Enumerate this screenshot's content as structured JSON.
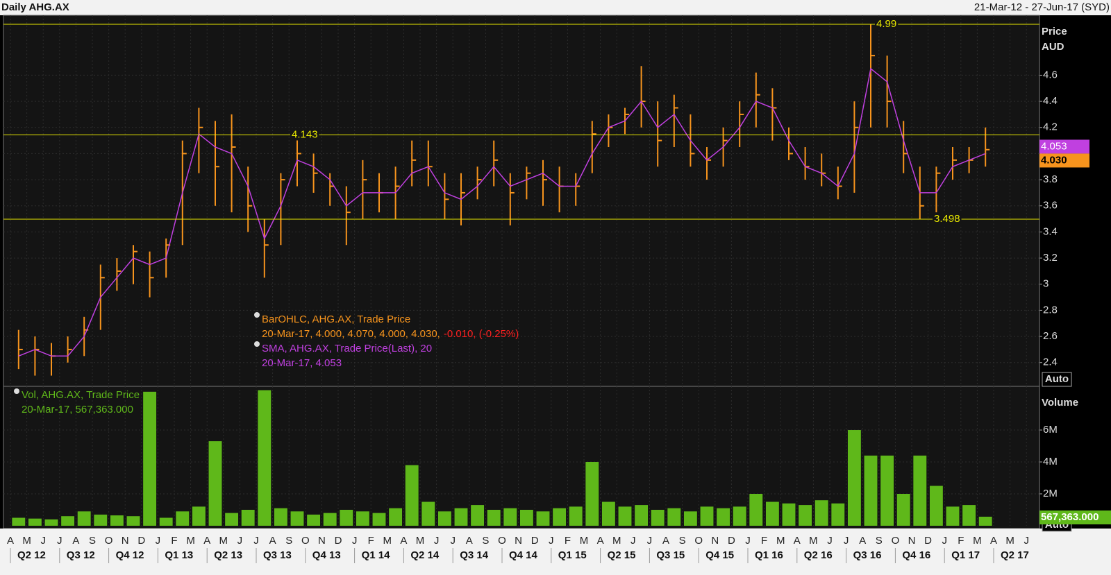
{
  "header": {
    "title": "Daily AHG.AX",
    "range": "21-Mar-12 - 27-Jun-17 (SYD)"
  },
  "chart_data": [
    {
      "type": "ohlc",
      "y_label": "Price",
      "y_unit": "AUD",
      "button": "Auto",
      "ylim": [
        2.218,
        5.059
      ],
      "yticks": [
        2.4,
        2.6,
        2.8,
        3,
        3.2,
        3.4,
        3.6,
        3.8,
        4,
        4.2,
        4.4,
        4.6
      ],
      "grid": true,
      "reference_lines": [
        {
          "value": 4.99,
          "color": "#e8e800"
        },
        {
          "value": 4.143,
          "color": "#e8e800"
        },
        {
          "value": 3.498,
          "color": "#e8e800"
        }
      ],
      "series": [
        {
          "name": "BarOHLC, AHG.AX, Trade Price",
          "color": "#f7941d",
          "detail": "20-Mar-17, 4.000, 4.070, 4.000, 4.030,",
          "change": "-0.010, (-0.25%)",
          "change_color": "#ff2020",
          "last_value": {
            "value": 4.03,
            "label": "4.030"
          },
          "high": [
            2.65,
            2.6,
            2.55,
            2.6,
            2.75,
            3.15,
            3.2,
            3.3,
            3.25,
            3.35,
            4.1,
            4.35,
            4.25,
            4.3,
            3.9,
            3.5,
            3.85,
            4.14,
            4.0,
            3.85,
            3.75,
            3.95,
            3.85,
            3.9,
            4.1,
            4.1,
            3.85,
            3.85,
            3.9,
            4.1,
            3.85,
            3.9,
            3.95,
            3.9,
            3.85,
            4.25,
            4.3,
            4.35,
            4.67,
            4.4,
            4.45,
            4.3,
            4.05,
            4.2,
            4.4,
            4.62,
            4.5,
            4.2,
            4.05,
            4.0,
            3.9,
            4.4,
            4.99,
            4.75,
            4.25,
            3.9,
            3.9,
            4.05,
            4.05,
            4.2,
            null,
            null,
            null
          ],
          "low": [
            2.35,
            2.3,
            2.3,
            2.4,
            2.45,
            2.65,
            2.95,
            3.0,
            2.9,
            3.05,
            3.3,
            3.85,
            3.6,
            3.55,
            3.4,
            3.05,
            3.3,
            3.75,
            3.7,
            3.6,
            3.3,
            3.5,
            3.55,
            3.5,
            3.75,
            3.75,
            3.5,
            3.45,
            3.65,
            3.75,
            3.45,
            3.65,
            3.6,
            3.55,
            3.6,
            3.85,
            4.05,
            4.15,
            4.2,
            3.9,
            4.05,
            3.9,
            3.8,
            3.9,
            4.05,
            4.2,
            4.1,
            3.95,
            3.8,
            3.75,
            3.65,
            3.7,
            4.2,
            4.2,
            3.85,
            3.5,
            3.55,
            3.8,
            3.85,
            3.9,
            null,
            null,
            null
          ],
          "close": [
            2.5,
            2.5,
            2.45,
            2.5,
            2.65,
            3.05,
            3.1,
            3.25,
            3.05,
            3.3,
            4.0,
            4.2,
            3.9,
            4.05,
            3.6,
            3.3,
            3.8,
            4.0,
            3.85,
            3.75,
            3.55,
            3.8,
            3.7,
            3.75,
            3.95,
            3.9,
            3.65,
            3.7,
            3.8,
            3.95,
            3.7,
            3.85,
            3.8,
            3.75,
            3.75,
            4.15,
            4.2,
            4.3,
            4.4,
            4.1,
            4.35,
            4.0,
            3.95,
            4.1,
            4.3,
            4.45,
            4.35,
            4.0,
            3.9,
            3.85,
            3.75,
            4.2,
            4.75,
            4.4,
            4.0,
            3.6,
            3.85,
            3.95,
            3.95,
            4.03,
            null,
            null,
            null
          ]
        },
        {
          "name": "SMA, AHG.AX, Trade Price(Last),  20",
          "color": "#c040e0",
          "detail": "20-Mar-17, 4.053",
          "last_value": 4.053,
          "values": [
            2.45,
            2.5,
            2.45,
            2.45,
            2.6,
            2.9,
            3.05,
            3.2,
            3.15,
            3.2,
            3.7,
            4.15,
            4.05,
            4.0,
            3.75,
            3.35,
            3.6,
            3.95,
            3.9,
            3.8,
            3.6,
            3.7,
            3.7,
            3.7,
            3.85,
            3.9,
            3.7,
            3.65,
            3.75,
            3.9,
            3.75,
            3.8,
            3.85,
            3.75,
            3.75,
            4.0,
            4.2,
            4.25,
            4.4,
            4.2,
            4.3,
            4.1,
            3.95,
            4.05,
            4.2,
            4.4,
            4.35,
            4.1,
            3.9,
            3.85,
            3.75,
            4.0,
            4.65,
            4.55,
            4.1,
            3.7,
            3.7,
            3.9,
            3.95,
            4.0,
            null,
            null,
            null
          ]
        }
      ]
    },
    {
      "type": "bar",
      "y_label": "Volume",
      "button": "Auto",
      "ylim": [
        0,
        8740000
      ],
      "yticks": [
        {
          "value": 2000000,
          "label": "2M"
        },
        {
          "value": 4000000,
          "label": "4M"
        },
        {
          "value": 6000000,
          "label": "6M"
        }
      ],
      "categories": [
        "A",
        "M",
        "J",
        "J",
        "A",
        "S",
        "O",
        "N",
        "D",
        "J",
        "F",
        "M",
        "A",
        "M",
        "J",
        "J",
        "A",
        "S",
        "O",
        "N",
        "D",
        "J",
        "F",
        "M",
        "A",
        "M",
        "J",
        "J",
        "A",
        "S",
        "O",
        "N",
        "D",
        "J",
        "F",
        "M",
        "A",
        "M",
        "J",
        "J",
        "A",
        "S",
        "O",
        "N",
        "D",
        "J",
        "F",
        "M",
        "A",
        "M",
        "J",
        "J",
        "A",
        "S",
        "O",
        "N",
        "D",
        "J",
        "F",
        "M",
        "A",
        "M",
        "J"
      ],
      "quarters": [
        "Q2 12",
        "Q3 12",
        "Q4 12",
        "Q1 13",
        "Q2 13",
        "Q3 13",
        "Q4 13",
        "Q1 14",
        "Q2 14",
        "Q3 14",
        "Q4 14",
        "Q1 15",
        "Q2 15",
        "Q3 15",
        "Q4 15",
        "Q1 16",
        "Q2 16",
        "Q3 16",
        "Q4 16",
        "Q1 17",
        "Q2 17"
      ],
      "series": [
        {
          "name": "Vol, AHG.AX, Trade Price",
          "color": "#5fb81a",
          "detail": "20-Mar-17, 567,363.000",
          "last_value": {
            "value": 567363,
            "label": "567,363.000"
          },
          "values": [
            500000,
            450000,
            400000,
            600000,
            900000,
            700000,
            650000,
            600000,
            8400000,
            500000,
            900000,
            1200000,
            5300000,
            800000,
            1000000,
            8500000,
            1100000,
            900000,
            700000,
            800000,
            1000000,
            900000,
            800000,
            1100000,
            3800000,
            1500000,
            900000,
            1100000,
            1300000,
            1000000,
            1100000,
            1000000,
            900000,
            1100000,
            1200000,
            4000000,
            1500000,
            1200000,
            1300000,
            1000000,
            1100000,
            900000,
            1200000,
            1100000,
            1200000,
            2000000,
            1500000,
            1400000,
            1300000,
            1600000,
            1400000,
            6000000,
            4400000,
            4400000,
            2000000,
            4400000,
            2500000,
            1200000,
            1300000,
            567363,
            null,
            null,
            null
          ]
        }
      ]
    }
  ]
}
